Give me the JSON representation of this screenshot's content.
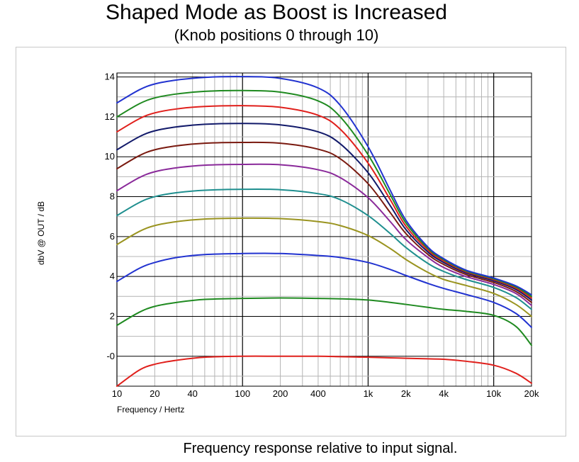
{
  "header": {
    "title": "Shaped Mode as Boost is Increased",
    "subtitle": "(Knob positions 0 through 10)"
  },
  "caption": "Frequency response relative to input signal.",
  "chart_data": {
    "type": "line",
    "xlabel": "Frequency / Hertz",
    "ylabel": "dbV @ OUT / dB",
    "xscale": "log",
    "xlim": [
      10,
      20000
    ],
    "ylim": [
      -1.5,
      14.2
    ],
    "x_ticks": [
      10,
      20,
      40,
      100,
      200,
      400,
      1000,
      2000,
      4000,
      10000,
      20000
    ],
    "x_tick_labels": [
      "10",
      "20",
      "40",
      "100",
      "200",
      "400",
      "1k",
      "2k",
      "4k",
      "10k",
      "20k"
    ],
    "y_ticks": [
      0,
      2,
      4,
      6,
      8,
      10,
      12,
      14
    ],
    "y_tick_labels": [
      "-0",
      "2",
      "4",
      "6",
      "8",
      "10",
      "12",
      "14"
    ],
    "grid": true,
    "legend": "none",
    "x": [
      10,
      15,
      20,
      30,
      50,
      100,
      200,
      400,
      600,
      1000,
      1500,
      2000,
      3000,
      4000,
      6000,
      10000,
      15000,
      20000
    ],
    "series": [
      {
        "color": "#e0201c",
        "values": [
          -1.5,
          -0.7,
          -0.4,
          -0.2,
          -0.05,
          0.0,
          0.0,
          0.0,
          -0.02,
          -0.05,
          -0.08,
          -0.1,
          -0.13,
          -0.15,
          -0.25,
          -0.45,
          -0.85,
          -1.35
        ]
      },
      {
        "color": "#1f8a20",
        "values": [
          1.55,
          2.2,
          2.5,
          2.7,
          2.85,
          2.9,
          2.92,
          2.9,
          2.88,
          2.82,
          2.7,
          2.6,
          2.45,
          2.35,
          2.25,
          2.05,
          1.5,
          0.55
        ]
      },
      {
        "color": "#2233d0",
        "values": [
          3.75,
          4.4,
          4.7,
          4.95,
          5.1,
          5.15,
          5.15,
          5.05,
          4.95,
          4.7,
          4.35,
          4.05,
          3.65,
          3.4,
          3.1,
          2.7,
          2.15,
          1.45
        ]
      },
      {
        "color": "#9a9420",
        "values": [
          5.6,
          6.25,
          6.55,
          6.75,
          6.88,
          6.92,
          6.9,
          6.75,
          6.55,
          6.05,
          5.4,
          4.85,
          4.2,
          3.85,
          3.55,
          3.15,
          2.6,
          2.0
        ]
      },
      {
        "color": "#1f8f8f",
        "values": [
          7.05,
          7.7,
          8.0,
          8.2,
          8.32,
          8.37,
          8.35,
          8.15,
          7.85,
          7.05,
          6.15,
          5.45,
          4.65,
          4.25,
          3.85,
          3.45,
          2.95,
          2.35
        ]
      },
      {
        "color": "#8a2a9a",
        "values": [
          8.3,
          8.95,
          9.25,
          9.45,
          9.58,
          9.62,
          9.6,
          9.35,
          8.95,
          7.95,
          6.75,
          5.85,
          4.95,
          4.45,
          4.0,
          3.6,
          3.15,
          2.55
        ]
      },
      {
        "color": "#7a1a10",
        "values": [
          9.4,
          10.05,
          10.35,
          10.55,
          10.68,
          10.72,
          10.68,
          10.38,
          9.9,
          8.65,
          7.2,
          6.15,
          5.1,
          4.6,
          4.1,
          3.7,
          3.25,
          2.7
        ]
      },
      {
        "color": "#121a6a",
        "values": [
          10.35,
          11.0,
          11.3,
          11.5,
          11.63,
          11.67,
          11.6,
          11.25,
          10.65,
          9.2,
          7.55,
          6.35,
          5.22,
          4.7,
          4.18,
          3.78,
          3.35,
          2.82
        ]
      },
      {
        "color": "#e0201c",
        "values": [
          11.25,
          11.9,
          12.2,
          12.4,
          12.52,
          12.56,
          12.48,
          12.08,
          11.38,
          9.68,
          7.85,
          6.52,
          5.32,
          4.78,
          4.24,
          3.84,
          3.42,
          2.92
        ]
      },
      {
        "color": "#1f8a20",
        "values": [
          12.0,
          12.65,
          12.95,
          13.15,
          13.28,
          13.32,
          13.24,
          12.8,
          12.0,
          10.1,
          8.1,
          6.68,
          5.4,
          4.84,
          4.28,
          3.88,
          3.48,
          3.0
        ]
      },
      {
        "color": "#2233d0",
        "values": [
          12.7,
          13.35,
          13.65,
          13.85,
          13.98,
          14.02,
          13.93,
          13.45,
          12.58,
          10.5,
          8.32,
          6.82,
          5.47,
          4.89,
          4.32,
          3.92,
          3.53,
          3.08
        ]
      }
    ]
  }
}
